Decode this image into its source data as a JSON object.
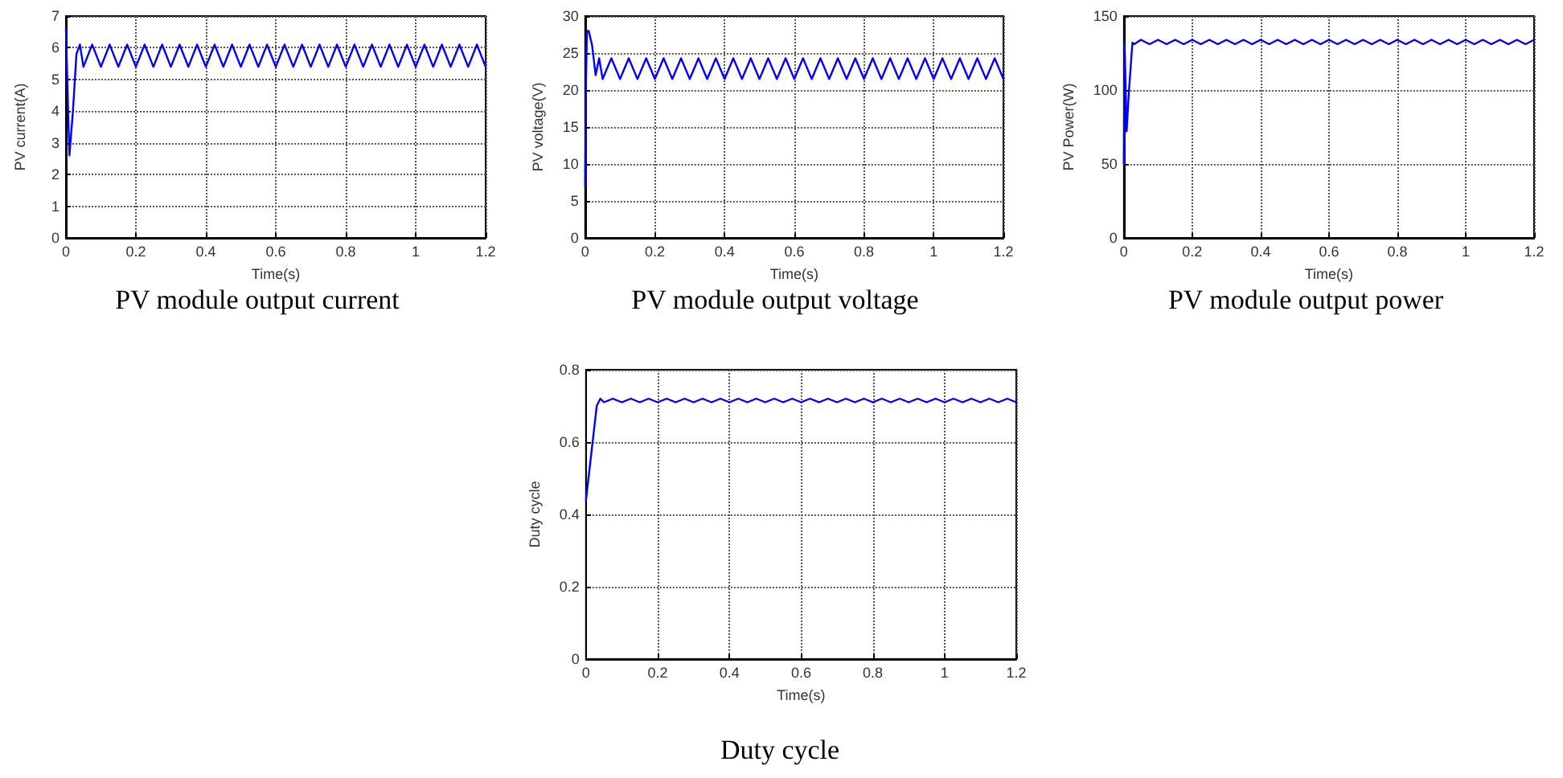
{
  "chart_data": [
    {
      "type": "line",
      "title": "PV module output current",
      "xlabel": "Time(s)",
      "ylabel": "PV current(A)",
      "xlim": [
        0,
        1.2
      ],
      "xticks": [
        0,
        0.2,
        0.4,
        0.6,
        0.8,
        1,
        1.2
      ],
      "ylim": [
        0,
        7
      ],
      "yticks": [
        0,
        1,
        2,
        3,
        4,
        5,
        6,
        7
      ],
      "grid": true,
      "marker": "none",
      "line_style": "solid",
      "series": [
        {
          "color": "#0000ff",
          "x": [
            0,
            0.005,
            0.01,
            0.02,
            0.03,
            0.04,
            0.05,
            0.075,
            0.1,
            0.125,
            0.15,
            0.175,
            0.2,
            0.225,
            0.25,
            0.275,
            0.3,
            0.325,
            0.35,
            0.375,
            0.4,
            0.425,
            0.45,
            0.475,
            0.5,
            0.525,
            0.55,
            0.575,
            0.6,
            0.625,
            0.65,
            0.675,
            0.7,
            0.725,
            0.75,
            0.775,
            0.8,
            0.825,
            0.85,
            0.875,
            0.9,
            0.925,
            0.95,
            0.975,
            1,
            1.025,
            1.05,
            1.075,
            1.1,
            1.125,
            1.15,
            1.175,
            1.2
          ],
          "values": [
            6.6,
            4.5,
            2.6,
            4.0,
            5.8,
            6.1,
            5.4,
            6.1,
            5.4,
            6.1,
            5.4,
            6.1,
            5.4,
            6.1,
            5.4,
            6.1,
            5.4,
            6.1,
            5.4,
            6.1,
            5.4,
            6.1,
            5.4,
            6.1,
            5.4,
            6.1,
            5.4,
            6.1,
            5.4,
            6.1,
            5.4,
            6.1,
            5.4,
            6.1,
            5.4,
            6.1,
            5.4,
            6.1,
            5.4,
            6.1,
            5.4,
            6.1,
            5.4,
            6.1,
            5.4,
            6.1,
            5.4,
            6.1,
            5.4,
            6.1,
            5.4,
            6.1,
            5.4
          ]
        }
      ]
    },
    {
      "type": "line",
      "title": "PV module output voltage",
      "xlabel": "Time(s)",
      "ylabel": "PV voltage(V)",
      "xlim": [
        0,
        1.2
      ],
      "xticks": [
        0,
        0.2,
        0.4,
        0.6,
        0.8,
        1,
        1.2
      ],
      "ylim": [
        0,
        30
      ],
      "yticks": [
        0,
        5,
        10,
        15,
        20,
        25,
        30
      ],
      "grid": true,
      "marker": "none",
      "line_style": "solid",
      "series": [
        {
          "color": "#0000ff",
          "x": [
            0,
            0.002,
            0.005,
            0.01,
            0.02,
            0.03,
            0.04,
            0.05,
            0.075,
            0.1,
            0.125,
            0.15,
            0.175,
            0.2,
            0.225,
            0.25,
            0.275,
            0.3,
            0.325,
            0.35,
            0.375,
            0.4,
            0.425,
            0.45,
            0.475,
            0.5,
            0.525,
            0.55,
            0.575,
            0.6,
            0.625,
            0.65,
            0.675,
            0.7,
            0.725,
            0.75,
            0.775,
            0.8,
            0.825,
            0.85,
            0.875,
            0.9,
            0.925,
            0.95,
            0.975,
            1,
            1.025,
            1.05,
            1.075,
            1.1,
            1.125,
            1.15,
            1.175,
            1.2
          ],
          "values": [
            7,
            20,
            28,
            28,
            26,
            22,
            24.3,
            21.5,
            24.3,
            21.5,
            24.3,
            21.5,
            24.3,
            21.5,
            24.3,
            21.5,
            24.3,
            21.5,
            24.3,
            21.5,
            24.3,
            21.5,
            24.3,
            21.5,
            24.3,
            21.5,
            24.3,
            21.5,
            24.3,
            21.5,
            24.3,
            21.5,
            24.3,
            21.5,
            24.3,
            21.5,
            24.3,
            21.5,
            24.3,
            21.5,
            24.3,
            21.5,
            24.3,
            21.5,
            24.3,
            21.5,
            24.3,
            21.5,
            24.3,
            21.5,
            24.3,
            21.5,
            24.3,
            21.5
          ]
        }
      ]
    },
    {
      "type": "line",
      "title": "PV module output power",
      "xlabel": "Time(s)",
      "ylabel": "PV Power(W)",
      "xlim": [
        0,
        1.2
      ],
      "xticks": [
        0,
        0.2,
        0.4,
        0.6,
        0.8,
        1,
        1.2
      ],
      "ylim": [
        0,
        150
      ],
      "yticks": [
        0,
        50,
        100,
        150
      ],
      "grid": true,
      "marker": "none",
      "line_style": "solid",
      "series": [
        {
          "color": "#0000ff",
          "x": [
            0,
            0.002,
            0.008,
            0.015,
            0.025,
            0.03,
            0.05,
            0.075,
            0.1,
            0.125,
            0.15,
            0.175,
            0.2,
            0.225,
            0.25,
            0.275,
            0.3,
            0.325,
            0.35,
            0.375,
            0.4,
            0.425,
            0.45,
            0.475,
            0.5,
            0.525,
            0.55,
            0.575,
            0.6,
            0.625,
            0.65,
            0.675,
            0.7,
            0.725,
            0.75,
            0.775,
            0.8,
            0.825,
            0.85,
            0.875,
            0.9,
            0.925,
            0.95,
            0.975,
            1,
            1.025,
            1.05,
            1.075,
            1.1,
            1.125,
            1.15,
            1.175,
            1.2
          ],
          "values": [
            50,
            132,
            72,
            100,
            132,
            131,
            134,
            131,
            134,
            131,
            134,
            131,
            134,
            131,
            134,
            131,
            134,
            131,
            134,
            131,
            134,
            131,
            134,
            131,
            134,
            131,
            134,
            131,
            134,
            131,
            134,
            131,
            134,
            131,
            134,
            131,
            134,
            131,
            134,
            131,
            134,
            131,
            134,
            131,
            134,
            131,
            134,
            131,
            134,
            131,
            134,
            131,
            134
          ]
        }
      ]
    },
    {
      "type": "line",
      "title": "Duty cycle",
      "xlabel": "Time(s)",
      "ylabel": "Duty cycle",
      "xlim": [
        0,
        1.2
      ],
      "xticks": [
        0,
        0.2,
        0.4,
        0.6,
        0.8,
        1,
        1.2
      ],
      "ylim": [
        0,
        0.8
      ],
      "yticks": [
        0,
        0.2,
        0.4,
        0.6,
        0.8
      ],
      "grid": true,
      "marker": "none",
      "line_style": "solid",
      "series": [
        {
          "color": "#0000ff",
          "x": [
            0,
            0.03,
            0.04,
            0.05,
            0.075,
            0.1,
            0.125,
            0.15,
            0.175,
            0.2,
            0.225,
            0.25,
            0.275,
            0.3,
            0.325,
            0.35,
            0.375,
            0.4,
            0.425,
            0.45,
            0.475,
            0.5,
            0.525,
            0.55,
            0.575,
            0.6,
            0.625,
            0.65,
            0.675,
            0.7,
            0.725,
            0.75,
            0.775,
            0.8,
            0.825,
            0.85,
            0.875,
            0.9,
            0.925,
            0.95,
            0.975,
            1,
            1.025,
            1.05,
            1.075,
            1.1,
            1.125,
            1.15,
            1.175,
            1.2
          ],
          "values": [
            0.44,
            0.7,
            0.72,
            0.71,
            0.72,
            0.71,
            0.72,
            0.71,
            0.72,
            0.71,
            0.72,
            0.71,
            0.72,
            0.71,
            0.72,
            0.71,
            0.72,
            0.71,
            0.72,
            0.71,
            0.72,
            0.71,
            0.72,
            0.71,
            0.72,
            0.71,
            0.72,
            0.71,
            0.72,
            0.71,
            0.72,
            0.71,
            0.72,
            0.71,
            0.72,
            0.71,
            0.72,
            0.71,
            0.72,
            0.71,
            0.72,
            0.71,
            0.72,
            0.71,
            0.72,
            0.71,
            0.72,
            0.71,
            0.72,
            0.71
          ]
        }
      ]
    }
  ]
}
